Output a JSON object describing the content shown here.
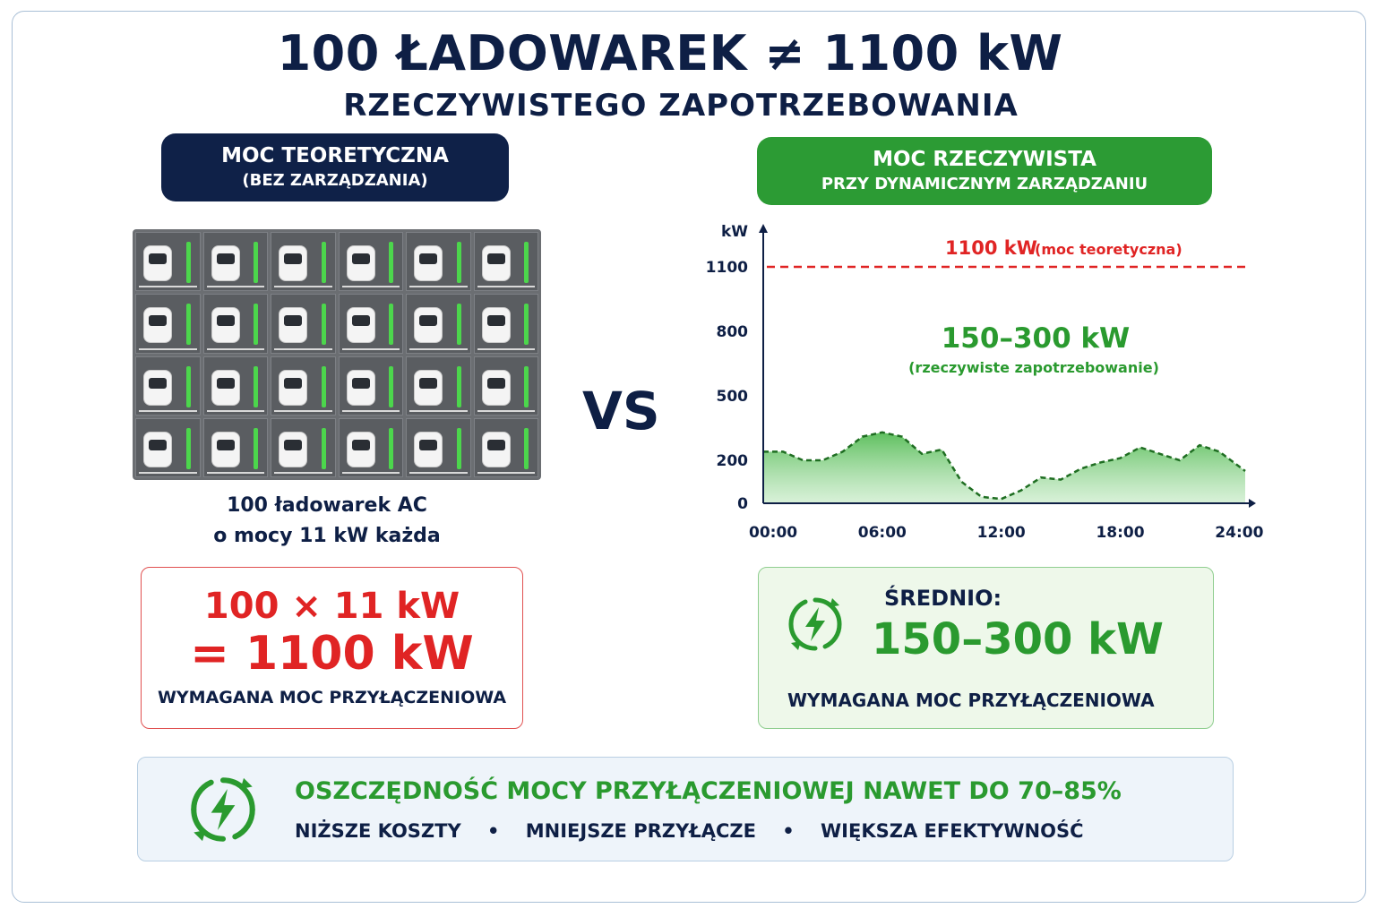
{
  "title_line1": "100 ŁADOWAREK ≠ 1100 kW",
  "title_line2": "RZECZYWISTEGO ZAPOTRZEBOWANIA",
  "left": {
    "pill_title": "MOC TEORETYCZNA",
    "pill_subtitle": "(BEZ ZARZĄDZANIA)",
    "caption_line1": "100 ładowarek AC",
    "caption_line2": "o mocy 11 kW każda",
    "formula_line1": "100 × 11 kW",
    "formula_line2": "= 1100 kW",
    "formula_note": "WYMAGANA MOC PRZYŁĄCZENIOWA"
  },
  "vs_label": "VS",
  "right": {
    "pill_title": "MOC RZECZYWISTA",
    "pill_subtitle": "PRZY DYNAMICZNYM ZARZĄDZANIU",
    "avg_label": "ŚREDNIO:",
    "avg_value": "150–300 kW",
    "avg_note": "WYMAGANA MOC PRZYŁĄCZENIOWA",
    "avg_icon": "lightning-cycle-icon"
  },
  "banner": {
    "icon": "lightning-cycle-icon",
    "headline": "OSZCZĘDNOŚĆ MOCY PRZYŁĄCZENIOWEJ NAWET DO 70–85%",
    "benefits": [
      "NIŻSZE KOSZTY",
      "MNIEJSZE PRZYŁĄCZE",
      "WIĘKSZA EFEKTYWNOŚĆ"
    ],
    "separator": "•"
  },
  "chart_data": {
    "type": "area",
    "ylabel": "kW",
    "xlabel": "",
    "ylim": [
      0,
      1250
    ],
    "xlim": [
      0,
      24.3
    ],
    "y_ticks": [
      0,
      200,
      500,
      800,
      1100
    ],
    "x_ticks": [
      "00:00",
      "06:00",
      "12:00",
      "18:00",
      "24:00"
    ],
    "x_tick_values": [
      0.5,
      6,
      12,
      18,
      24
    ],
    "reference_line": {
      "value": 1100,
      "label_main": "1100 kW",
      "label_note": "(moc teoretyczna)",
      "color": "#e02424",
      "style": "dashed"
    },
    "annotation": {
      "main": "150–300 kW",
      "note": "(rzeczywiste zapotrzebowanie)"
    },
    "series": [
      {
        "color": "#2a9a2f",
        "x": [
          0,
          1,
          2,
          3,
          4,
          5,
          6,
          7,
          8,
          9,
          10,
          11,
          12,
          13,
          14,
          15,
          16,
          17,
          18,
          19,
          20,
          21,
          22,
          23,
          24.3
        ],
        "y": [
          240,
          240,
          200,
          200,
          240,
          310,
          330,
          310,
          230,
          250,
          100,
          30,
          20,
          60,
          120,
          110,
          160,
          190,
          210,
          260,
          230,
          200,
          270,
          240,
          150
        ]
      }
    ],
    "grid": false
  }
}
